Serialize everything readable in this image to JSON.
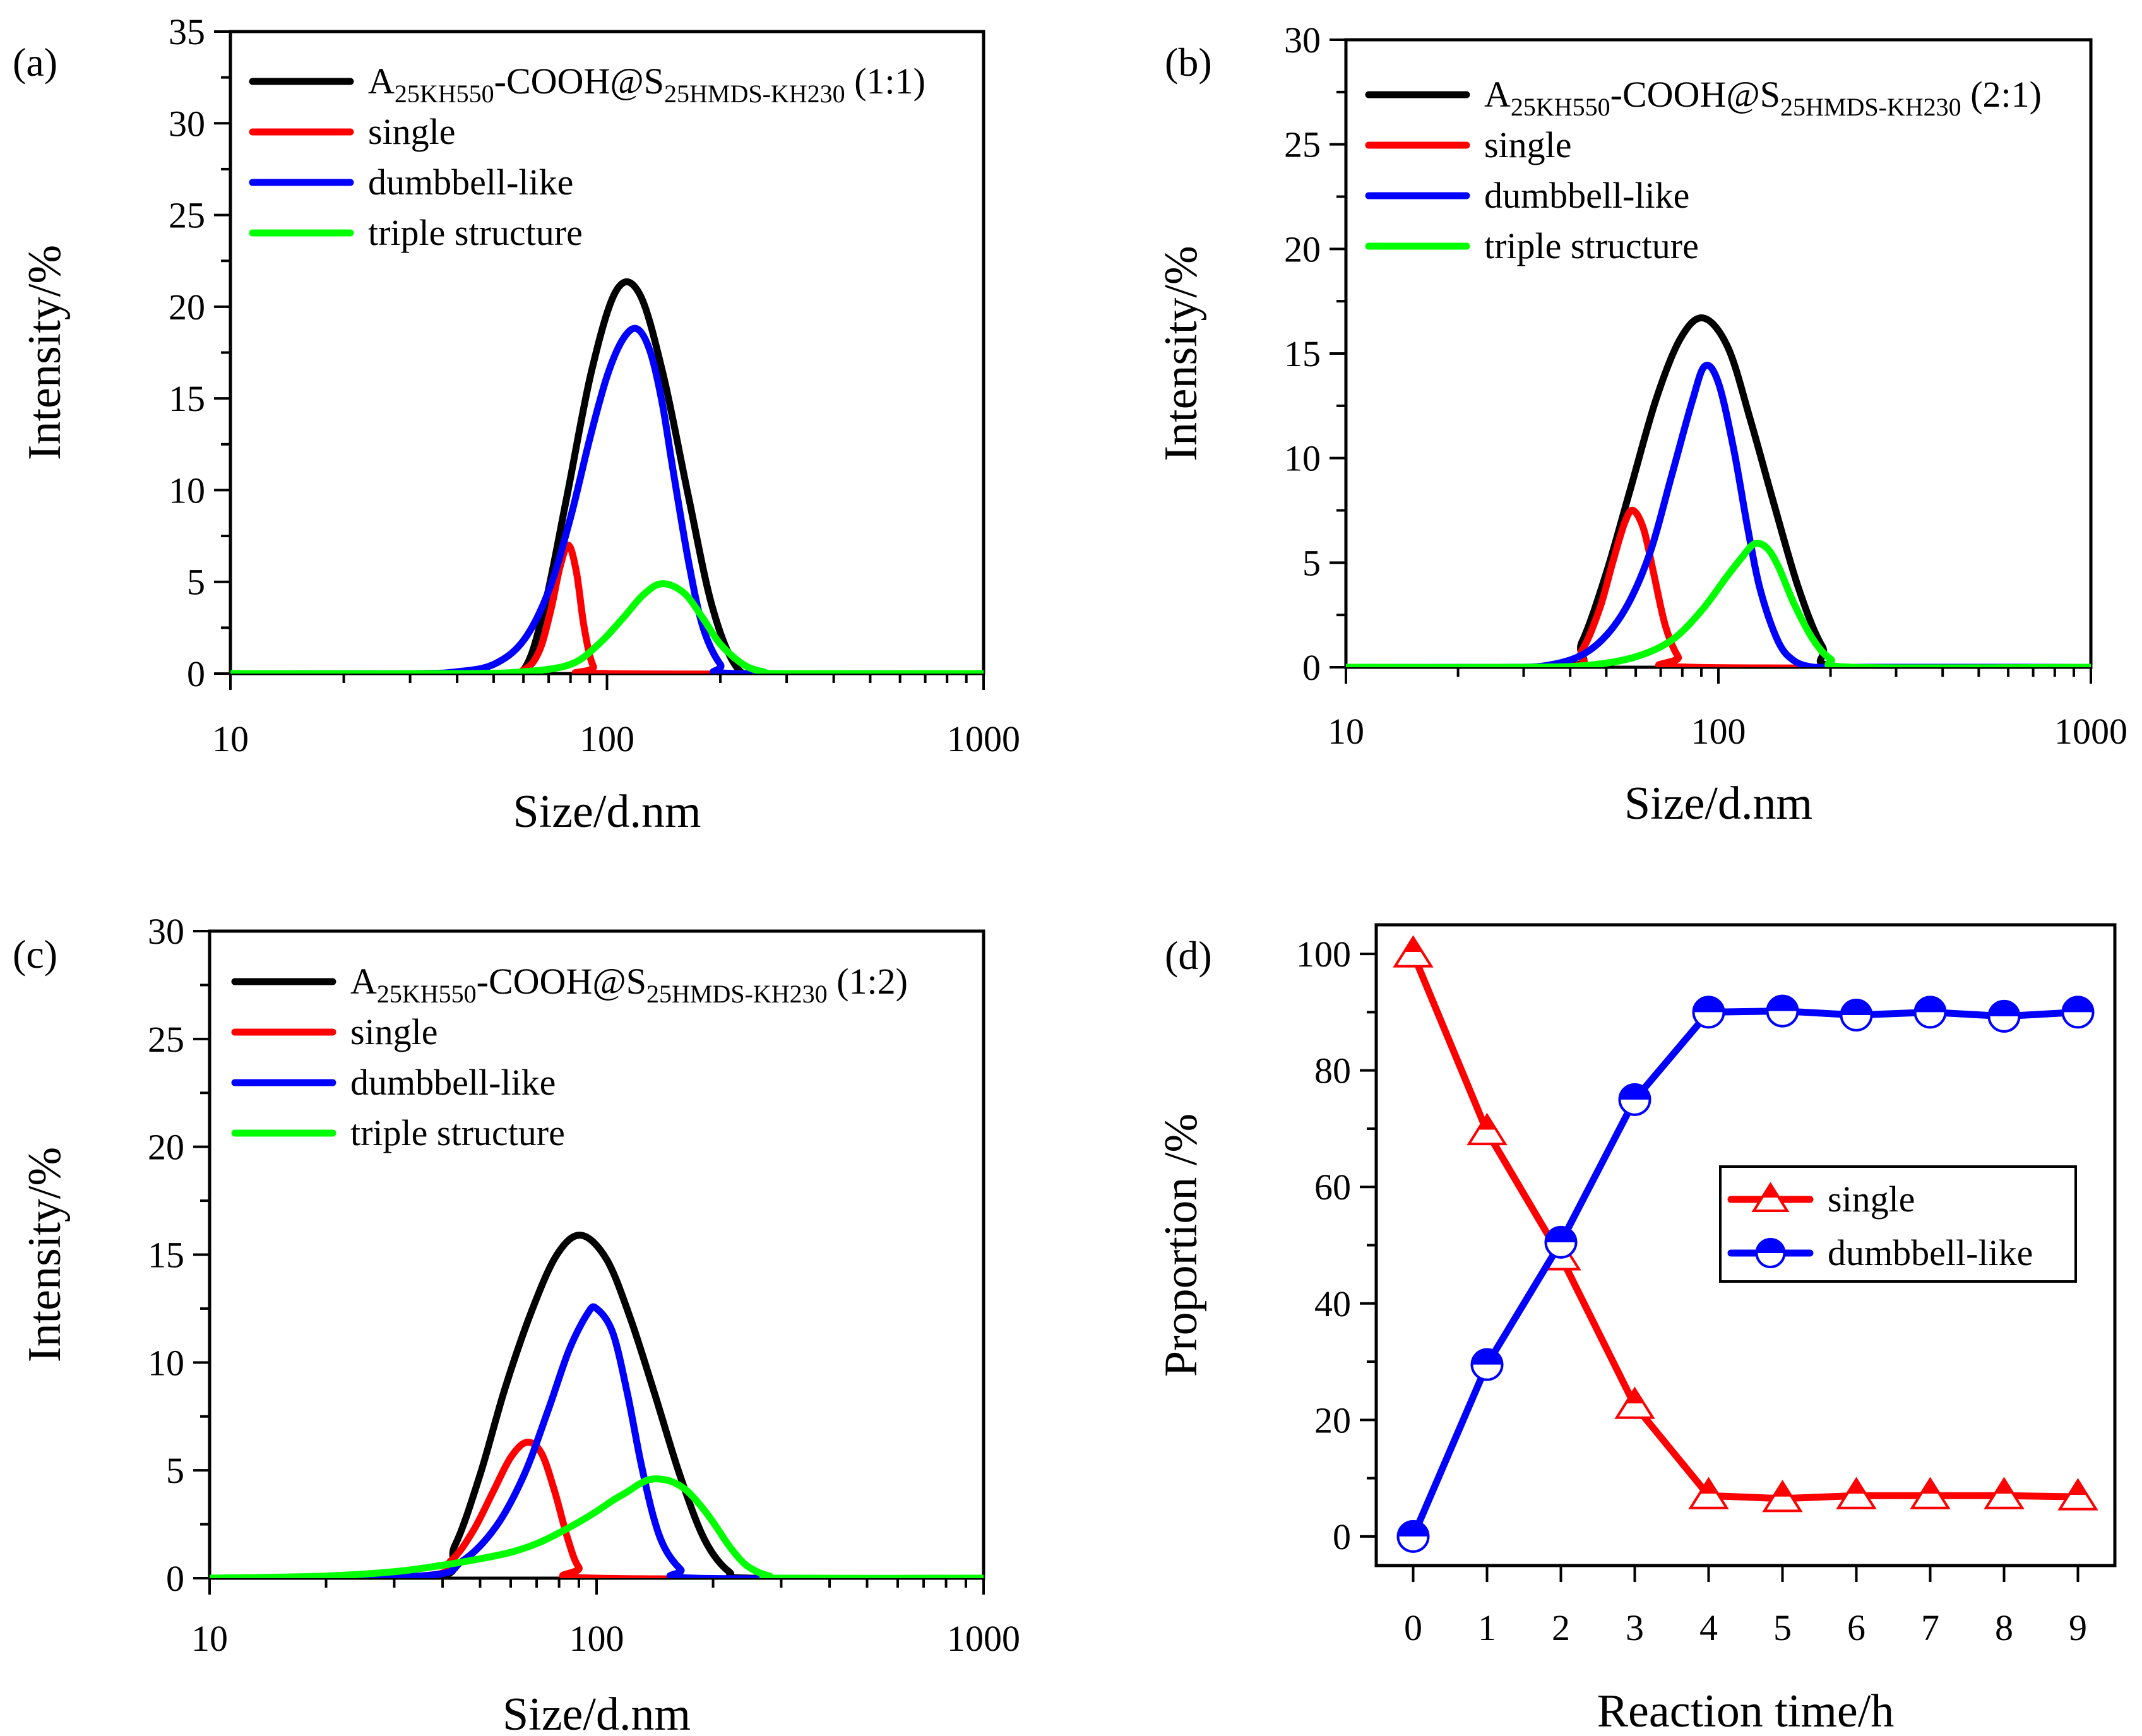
{
  "chart_data": [
    {
      "panel": "(a)",
      "type": "line",
      "xscale": "log",
      "xlim": [
        10,
        1000
      ],
      "ylim": [
        0,
        35
      ],
      "xticks": [
        10,
        100,
        1000
      ],
      "xtick_labels": [
        "10",
        "100",
        "1000"
      ],
      "yticks": [
        0,
        5,
        10,
        15,
        20,
        25,
        30,
        35
      ],
      "ytick_labels": [
        "0",
        "5",
        "10",
        "15",
        "20",
        "25",
        "30",
        "35"
      ],
      "xlabel": "Size/d.nm",
      "ylabel": "Intensity/%",
      "legend_position": "top-left",
      "series": [
        {
          "name": "A25KH550-COOH@S25HMDS-KH230 (1:1)",
          "legend": {
            "base": "A",
            "sub1": "25KH550",
            "mid": "-COOH@S",
            "sub2": "25HMDS-KH230",
            "tail": " (1:1)"
          },
          "color": "#000000",
          "x": [
            10,
            50,
            60,
            68,
            78,
            91,
            106,
            122,
            141,
            164,
            190,
            220,
            255,
            400,
            1000
          ],
          "y": [
            0,
            0,
            0.2,
            3.5,
            9.5,
            16.5,
            20.9,
            20.7,
            16.3,
            9.8,
            3.7,
            0.4,
            0,
            0,
            0
          ]
        },
        {
          "name": "single",
          "color": "#ff0000",
          "x": [
            10,
            50,
            60,
            66,
            71,
            75,
            79,
            83,
            87,
            92,
            100,
            1000
          ],
          "y": [
            0,
            0,
            0.2,
            1.2,
            3.5,
            5.8,
            7.0,
            5.5,
            2.5,
            0.4,
            0,
            0
          ]
        },
        {
          "name": "dumbbell-like",
          "color": "#0000ff",
          "x": [
            10,
            30,
            40,
            50,
            60,
            70,
            80,
            90,
            100,
            110,
            120,
            130,
            140,
            150,
            165,
            180,
            200,
            220,
            1000
          ],
          "y": [
            0,
            0,
            0.1,
            0.5,
            1.8,
            4.5,
            8.5,
            12.8,
            16.2,
            18.2,
            18.8,
            17.6,
            14.8,
            11.0,
            6.0,
            2.5,
            0.5,
            0,
            0
          ]
        },
        {
          "name": "triple structure",
          "color": "#00ff00",
          "x": [
            10,
            40,
            60,
            80,
            95,
            110,
            125,
            140,
            160,
            180,
            200,
            230,
            260,
            300,
            1000
          ],
          "y": [
            0,
            0,
            0.1,
            0.5,
            1.6,
            3.0,
            4.3,
            4.9,
            4.4,
            3.0,
            1.6,
            0.5,
            0.1,
            0,
            0
          ]
        }
      ]
    },
    {
      "panel": "(b)",
      "type": "line",
      "xscale": "log",
      "xlim": [
        10,
        1000
      ],
      "ylim": [
        0,
        30
      ],
      "xticks": [
        10,
        100,
        1000
      ],
      "xtick_labels": [
        "10",
        "100",
        "1000"
      ],
      "yticks": [
        0,
        5,
        10,
        15,
        20,
        25,
        30
      ],
      "ytick_labels": [
        "0",
        "5",
        "10",
        "15",
        "20",
        "25",
        "30"
      ],
      "xlabel": "Size/d.nm",
      "ylabel": "Intensity/%",
      "legend_position": "top-left",
      "series": [
        {
          "name": "A25KH550-COOH@S25HMDS-KH230 (2:1)",
          "legend": {
            "base": "A",
            "sub1": "25KH550",
            "mid": "-COOH@S",
            "sub2": "25HMDS-KH230",
            "tail": " (2:1)"
          },
          "color": "#000000",
          "x": [
            10,
            38,
            43,
            50,
            58,
            68,
            79,
            91,
            106,
            122,
            141,
            164,
            190,
            220,
            1000
          ],
          "y": [
            0,
            0,
            1.2,
            4.5,
            8.5,
            12.8,
            15.7,
            16.7,
            15.3,
            11.8,
            7.8,
            3.8,
            1.0,
            0,
            0
          ]
        },
        {
          "name": "single",
          "color": "#ff0000",
          "x": [
            10,
            38,
            43,
            48,
            52,
            56,
            59,
            63,
            67,
            72,
            78,
            85,
            1000
          ],
          "y": [
            0,
            0,
            0.8,
            2.8,
            5.0,
            6.9,
            7.5,
            6.6,
            4.5,
            2.0,
            0.5,
            0,
            0
          ]
        },
        {
          "name": "dumbbell-like",
          "color": "#0000ff",
          "x": [
            10,
            25,
            35,
            45,
            55,
            65,
            75,
            85,
            92,
            100,
            110,
            120,
            130,
            145,
            160,
            180,
            200,
            1000
          ],
          "y": [
            0,
            0,
            0.1,
            0.8,
            2.5,
            5.3,
            9.2,
            12.7,
            14.4,
            13.6,
            10.4,
            6.6,
            3.6,
            1.2,
            0.3,
            0,
            0,
            0
          ]
        },
        {
          "name": "triple structure",
          "color": "#00ff00",
          "x": [
            10,
            30,
            45,
            60,
            75,
            90,
            105,
            115,
            125,
            135,
            145,
            160,
            180,
            200,
            230,
            1000
          ],
          "y": [
            0,
            0,
            0.1,
            0.5,
            1.3,
            2.7,
            4.3,
            5.2,
            5.9,
            5.7,
            4.8,
            3.0,
            1.3,
            0.4,
            0,
            0
          ]
        }
      ]
    },
    {
      "panel": "(c)",
      "type": "line",
      "xscale": "log",
      "xlim": [
        10,
        1000
      ],
      "ylim": [
        0,
        30
      ],
      "xticks": [
        10,
        100,
        1000
      ],
      "xtick_labels": [
        "10",
        "100",
        "1000"
      ],
      "yticks": [
        0,
        5,
        10,
        15,
        20,
        25,
        30
      ],
      "ytick_labels": [
        "0",
        "5",
        "10",
        "15",
        "20",
        "25",
        "30"
      ],
      "xlabel": "Size/d.nm",
      "ylabel": "Intensity/%",
      "legend_position": "top-left",
      "series": [
        {
          "name": "A25KH550-COOH@S25HMDS-KH230 (1:2)",
          "legend": {
            "base": "A",
            "sub1": "25KH550",
            "mid": "-COOH@S",
            "sub2": "25HMDS-KH230",
            "tail": " (1:2)"
          },
          "color": "#000000",
          "x": [
            10,
            37,
            43,
            50,
            58,
            68,
            79,
            91,
            106,
            122,
            141,
            164,
            190,
            220,
            255,
            1000
          ],
          "y": [
            0,
            0,
            1.5,
            4.8,
            8.8,
            12.4,
            15.0,
            15.9,
            14.8,
            12.1,
            8.6,
            4.8,
            1.8,
            0.3,
            0,
            0
          ]
        },
        {
          "name": "single",
          "color": "#ff0000",
          "x": [
            10,
            35,
            42,
            48,
            54,
            60,
            66,
            72,
            78,
            84,
            90,
            100,
            1000
          ],
          "y": [
            0,
            0.1,
            0.8,
            2.2,
            4.0,
            5.6,
            6.3,
            5.8,
            4.0,
            1.9,
            0.5,
            0,
            0
          ]
        },
        {
          "name": "dumbbell-like",
          "color": "#0000ff",
          "x": [
            10,
            35,
            45,
            55,
            65,
            75,
            85,
            95,
            100,
            110,
            120,
            130,
            140,
            150,
            165,
            180,
            1000
          ],
          "y": [
            0,
            0.1,
            0.8,
            2.4,
            4.8,
            7.8,
            10.6,
            12.3,
            12.5,
            11.4,
            8.6,
            5.4,
            2.9,
            1.4,
            0.4,
            0,
            0
          ]
        },
        {
          "name": "triple structure",
          "color": "#00ff00",
          "x": [
            10,
            20,
            30,
            40,
            50,
            60,
            70,
            80,
            90,
            100,
            110,
            120,
            130,
            140,
            155,
            170,
            185,
            200,
            220,
            240,
            260,
            280,
            300,
            1000
          ],
          "y": [
            0,
            0.1,
            0.3,
            0.6,
            0.9,
            1.2,
            1.6,
            2.1,
            2.6,
            3.1,
            3.6,
            4.0,
            4.4,
            4.6,
            4.5,
            4.1,
            3.4,
            2.6,
            1.5,
            0.7,
            0.3,
            0.1,
            0,
            0
          ]
        }
      ]
    },
    {
      "panel": "(d)",
      "type": "line",
      "xscale": "linear",
      "xlim": [
        -0.5,
        9.5
      ],
      "ylim": [
        -5,
        105
      ],
      "xticks": [
        0,
        1,
        2,
        3,
        4,
        5,
        6,
        7,
        8,
        9
      ],
      "xtick_labels": [
        "0",
        "1",
        "2",
        "3",
        "4",
        "5",
        "6",
        "7",
        "8",
        "9"
      ],
      "yticks": [
        0,
        20,
        40,
        60,
        80,
        100
      ],
      "ytick_labels": [
        "0",
        "20",
        "40",
        "60",
        "80",
        "100"
      ],
      "xlabel": "Reaction time/h",
      "ylabel": "Proportion /%",
      "legend_position": "center-right",
      "series": [
        {
          "name": "single",
          "color": "#ff0000",
          "marker": "half-filled-triangle",
          "x": [
            0,
            1,
            2,
            3,
            4,
            5,
            6,
            7,
            8,
            9
          ],
          "y": [
            100,
            69.5,
            48,
            22.5,
            7,
            6.5,
            7,
            7,
            7,
            6.8
          ]
        },
        {
          "name": "dumbbell-like",
          "color": "#0000ff",
          "marker": "half-filled-circle",
          "x": [
            0,
            1,
            2,
            3,
            4,
            5,
            6,
            7,
            8,
            9
          ],
          "y": [
            0,
            29.5,
            50.5,
            75,
            90,
            90.2,
            89.5,
            90,
            89.3,
            90
          ]
        }
      ]
    }
  ]
}
